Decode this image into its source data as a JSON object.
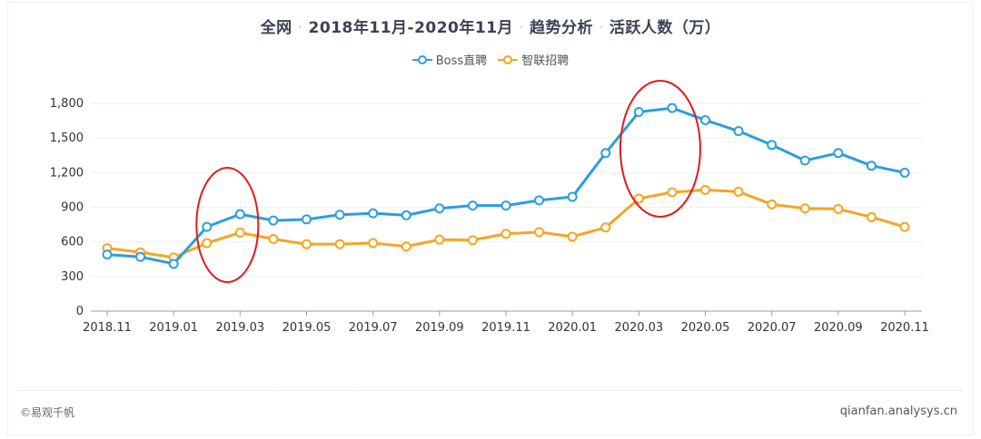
{
  "title": {
    "part1": "全网",
    "part2": "2018年11月-2020年11月",
    "part3": "趋势分析",
    "part4": "活跃人数（万）"
  },
  "footer": {
    "left": "©易观千帆",
    "right": "qianfan.analysys.cn"
  },
  "colors": {
    "boss": "#2b9fde",
    "zhilian": "#f5a623",
    "annotation": "#e11b1b",
    "axis_text": "#333333",
    "grid": "#eeeeee"
  },
  "chart_data": {
    "type": "line",
    "title": "全网 · 2018年11月-2020年11月 · 趋势分析 · 活跃人数（万）",
    "x": [
      "2018.11",
      "2018.12",
      "2019.01",
      "2019.02",
      "2019.03",
      "2019.04",
      "2019.05",
      "2019.06",
      "2019.07",
      "2019.08",
      "2019.09",
      "2019.10",
      "2019.11",
      "2019.12",
      "2020.01",
      "2020.02",
      "2020.03",
      "2020.04",
      "2020.05",
      "2020.06",
      "2020.07",
      "2020.08",
      "2020.09",
      "2020.10",
      "2020.11"
    ],
    "x_tick_labels": [
      "2018.11",
      "2019.01",
      "2019.03",
      "2019.05",
      "2019.07",
      "2019.09",
      "2019.11",
      "2020.01",
      "2020.03",
      "2020.05",
      "2020.07",
      "2020.09",
      "2020.11"
    ],
    "ylim": [
      0,
      1800
    ],
    "y_ticks": [
      0,
      300,
      600,
      900,
      1200,
      1500,
      1800
    ],
    "y_tick_labels": [
      "0",
      "300",
      "600",
      "900",
      "1,200",
      "1,500",
      "1,800"
    ],
    "grid": true,
    "legend_position": "top-center",
    "series": [
      {
        "name": "Boss直聘",
        "color": "#2b9fde",
        "values": [
          490,
          470,
          410,
          730,
          840,
          785,
          795,
          835,
          848,
          830,
          890,
          915,
          915,
          960,
          990,
          1370,
          1725,
          1760,
          1655,
          1560,
          1440,
          1305,
          1370,
          1260,
          1200
        ]
      },
      {
        "name": "智联招聘",
        "color": "#f5a623",
        "values": [
          545,
          510,
          465,
          590,
          680,
          625,
          580,
          580,
          590,
          560,
          620,
          615,
          670,
          685,
          645,
          725,
          975,
          1030,
          1050,
          1035,
          925,
          890,
          885,
          815,
          730
        ]
      }
    ],
    "annotations": [
      {
        "type": "ellipse",
        "near_x": "2019.03",
        "description": "red highlight"
      },
      {
        "type": "ellipse",
        "near_x": "2020.04",
        "description": "red highlight"
      }
    ]
  }
}
